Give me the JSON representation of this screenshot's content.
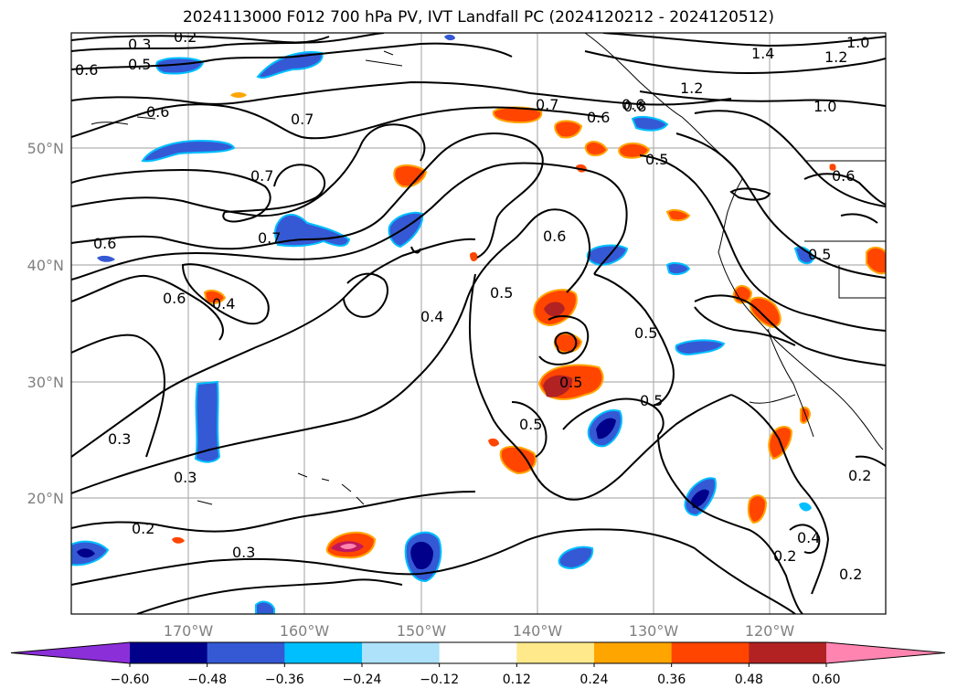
{
  "title": "2024113000 F012 700 hPa PV, IVT Landfall PC (2024120212 - 2024120512)",
  "map": {
    "lat_ticks": [
      "50°N",
      "40°N",
      "30°N",
      "20°N"
    ],
    "lon_ticks": [
      "170°W",
      "160°W",
      "150°W",
      "140°W",
      "130°W",
      "120°W"
    ],
    "contour_labels": [
      "0.3",
      "0.2",
      "0.5",
      "0.6",
      "0.6",
      "0.7",
      "0.7",
      "0.7",
      "0.6",
      "0.6",
      "0.4",
      "0.6",
      "0.3",
      "0.3",
      "0.2",
      "0.3",
      "0.4",
      "0.5",
      "0.6",
      "0.7",
      "0.6",
      "0.5",
      "0.5",
      "0.5",
      "0.5",
      "0.5",
      "0.4",
      "0.2",
      "0.2",
      "0.2",
      "1.4",
      "1.2",
      "1.2",
      "1.0",
      "1.0",
      "0.6",
      "0.5",
      "0.8"
    ]
  },
  "colorbar": {
    "ticks": [
      "−0.60",
      "−0.48",
      "−0.36",
      "−0.24",
      "−0.12",
      "0.12",
      "0.24",
      "0.36",
      "0.48",
      "0.60"
    ],
    "colors": [
      "#8b2fd9",
      "#00008b",
      "#3559d4",
      "#00bfff",
      "#aee1fa",
      "#ffffff",
      "#ffe98a",
      "#ffa500",
      "#ff4500",
      "#b22222",
      "#ff85b0"
    ]
  }
}
